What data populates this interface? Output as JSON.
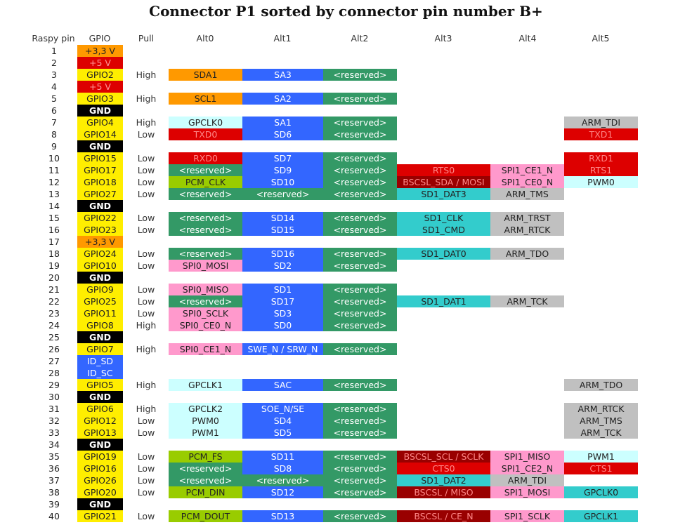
{
  "title": "Connector P1 sorted by connector pin number B+",
  "headers": [
    "Raspy pin",
    "GPIO",
    "Pull",
    "Alt0",
    "Alt1",
    "Alt2",
    "Alt3",
    "Alt4",
    "Alt5"
  ],
  "colors": {
    "orange": "#ff9900",
    "red": "#dd0000",
    "yellow": "#ffee00",
    "black": "#000000",
    "blue": "#3366ff",
    "green": "#339966",
    "lightcyan": "#ccffff",
    "pink": "#ff99cc",
    "lime": "#99cc00",
    "teal": "#33cccc",
    "gray": "#c0c0c0",
    "darkred": "#990000"
  },
  "rows": [
    {
      "pin": "1",
      "gpio": "+3,3 V",
      "gc": "orange",
      "pull": "",
      "alts": []
    },
    {
      "pin": "2",
      "gpio": "+5 V",
      "gc": "red",
      "pull": "",
      "alts": []
    },
    {
      "pin": "3",
      "gpio": "GPIO2",
      "gc": "yellow",
      "pull": "High",
      "alts": [
        [
          "SDA1",
          "orange"
        ],
        [
          "SA3",
          "blue"
        ],
        [
          "<reserved>",
          "green"
        ],
        null,
        null,
        null
      ]
    },
    {
      "pin": "4",
      "gpio": "+5 V",
      "gc": "red",
      "pull": "",
      "alts": []
    },
    {
      "pin": "5",
      "gpio": "GPIO3",
      "gc": "yellow",
      "pull": "High",
      "alts": [
        [
          "SCL1",
          "orange"
        ],
        [
          "SA2",
          "blue"
        ],
        [
          "<reserved>",
          "green"
        ],
        null,
        null,
        null
      ]
    },
    {
      "pin": "6",
      "gpio": "GND",
      "gc": "black",
      "pull": "",
      "alts": []
    },
    {
      "pin": "7",
      "gpio": "GPIO4",
      "gc": "yellow",
      "pull": "High",
      "alts": [
        [
          "GPCLK0",
          "lightcyan"
        ],
        [
          "SA1",
          "blue"
        ],
        [
          "<reserved>",
          "green"
        ],
        null,
        null,
        [
          "ARM_TDI",
          "gray"
        ]
      ]
    },
    {
      "pin": "8",
      "gpio": "GPIO14",
      "gc": "yellow",
      "pull": "Low",
      "alts": [
        [
          "TXD0",
          "red"
        ],
        [
          "SD6",
          "blue"
        ],
        [
          "<reserved>",
          "green"
        ],
        null,
        null,
        [
          "TXD1",
          "red"
        ]
      ]
    },
    {
      "pin": "9",
      "gpio": "GND",
      "gc": "black",
      "pull": "",
      "alts": []
    },
    {
      "pin": "10",
      "gpio": "GPIO15",
      "gc": "yellow",
      "pull": "Low",
      "alts": [
        [
          "RXD0",
          "red"
        ],
        [
          "SD7",
          "blue"
        ],
        [
          "<reserved>",
          "green"
        ],
        null,
        null,
        [
          "RXD1",
          "red"
        ]
      ]
    },
    {
      "pin": "11",
      "gpio": "GPIO17",
      "gc": "yellow",
      "pull": "Low",
      "alts": [
        [
          "<reserved>",
          "green"
        ],
        [
          "SD9",
          "blue"
        ],
        [
          "<reserved>",
          "green"
        ],
        [
          "RTS0",
          "red"
        ],
        [
          "SPI1_CE1_N",
          "pink"
        ],
        [
          "RTS1",
          "red"
        ]
      ]
    },
    {
      "pin": "12",
      "gpio": "GPIO18",
      "gc": "yellow",
      "pull": "Low",
      "alts": [
        [
          "PCM_CLK",
          "lime"
        ],
        [
          "SD10",
          "blue"
        ],
        [
          "<reserved>",
          "green"
        ],
        [
          "BSCSL_SDA / MOSI",
          "darkred"
        ],
        [
          "SPI1_CE0_N",
          "pink"
        ],
        [
          "PWM0",
          "lightcyan"
        ]
      ]
    },
    {
      "pin": "13",
      "gpio": "GPIO27",
      "gc": "yellow",
      "pull": "Low",
      "alts": [
        [
          "<reserved>",
          "green"
        ],
        [
          "<reserved>",
          "green"
        ],
        [
          "<reserved>",
          "green"
        ],
        [
          "SD1_DAT3",
          "teal"
        ],
        [
          "ARM_TMS",
          "gray"
        ],
        null
      ]
    },
    {
      "pin": "14",
      "gpio": "GND",
      "gc": "black",
      "pull": "",
      "alts": []
    },
    {
      "pin": "15",
      "gpio": "GPIO22",
      "gc": "yellow",
      "pull": "Low",
      "alts": [
        [
          "<reserved>",
          "green"
        ],
        [
          "SD14",
          "blue"
        ],
        [
          "<reserved>",
          "green"
        ],
        [
          "SD1_CLK",
          "teal"
        ],
        [
          "ARM_TRST",
          "gray"
        ],
        null
      ]
    },
    {
      "pin": "16",
      "gpio": "GPIO23",
      "gc": "yellow",
      "pull": "Low",
      "alts": [
        [
          "<reserved>",
          "green"
        ],
        [
          "SD15",
          "blue"
        ],
        [
          "<reserved>",
          "green"
        ],
        [
          "SD1_CMD",
          "teal"
        ],
        [
          "ARM_RTCK",
          "gray"
        ],
        null
      ]
    },
    {
      "pin": "17",
      "gpio": "+3,3 V",
      "gc": "orange",
      "pull": "",
      "alts": []
    },
    {
      "pin": "18",
      "gpio": "GPIO24",
      "gc": "yellow",
      "pull": "Low",
      "alts": [
        [
          "<reserved>",
          "green"
        ],
        [
          "SD16",
          "blue"
        ],
        [
          "<reserved>",
          "green"
        ],
        [
          "SD1_DAT0",
          "teal"
        ],
        [
          "ARM_TDO",
          "gray"
        ],
        null
      ]
    },
    {
      "pin": "19",
      "gpio": "GPIO10",
      "gc": "yellow",
      "pull": "Low",
      "alts": [
        [
          "SPI0_MOSI",
          "pink"
        ],
        [
          "SD2",
          "blue"
        ],
        [
          "<reserved>",
          "green"
        ],
        null,
        null,
        null
      ]
    },
    {
      "pin": "20",
      "gpio": "GND",
      "gc": "black",
      "pull": "",
      "alts": []
    },
    {
      "pin": "21",
      "gpio": "GPIO9",
      "gc": "yellow",
      "pull": "Low",
      "alts": [
        [
          "SPI0_MISO",
          "pink"
        ],
        [
          "SD1",
          "blue"
        ],
        [
          "<reserved>",
          "green"
        ],
        null,
        null,
        null
      ]
    },
    {
      "pin": "22",
      "gpio": "GPIO25",
      "gc": "yellow",
      "pull": "Low",
      "alts": [
        [
          "<reserved>",
          "green"
        ],
        [
          "SD17",
          "blue"
        ],
        [
          "<reserved>",
          "green"
        ],
        [
          "SD1_DAT1",
          "teal"
        ],
        [
          "ARM_TCK",
          "gray"
        ],
        null
      ]
    },
    {
      "pin": "23",
      "gpio": "GPIO11",
      "gc": "yellow",
      "pull": "Low",
      "alts": [
        [
          "SPI0_SCLK",
          "pink"
        ],
        [
          "SD3",
          "blue"
        ],
        [
          "<reserved>",
          "green"
        ],
        null,
        null,
        null
      ]
    },
    {
      "pin": "24",
      "gpio": "GPIO8",
      "gc": "yellow",
      "pull": "High",
      "alts": [
        [
          "SPI0_CE0_N",
          "pink"
        ],
        [
          "SD0",
          "blue"
        ],
        [
          "<reserved>",
          "green"
        ],
        null,
        null,
        null
      ]
    },
    {
      "pin": "25",
      "gpio": "GND",
      "gc": "black",
      "pull": "",
      "alts": []
    },
    {
      "pin": "26",
      "gpio": "GPIO7",
      "gc": "yellow",
      "pull": "High",
      "alts": [
        [
          "SPI0_CE1_N",
          "pink"
        ],
        [
          "SWE_N / SRW_N",
          "blue"
        ],
        [
          "<reserved>",
          "green"
        ],
        null,
        null,
        null
      ]
    },
    {
      "pin": "27",
      "gpio": "ID_SD",
      "gc": "blue",
      "pull": "",
      "alts": []
    },
    {
      "pin": "28",
      "gpio": "ID_SC",
      "gc": "blue",
      "pull": "",
      "alts": []
    },
    {
      "pin": "29",
      "gpio": "GPIO5",
      "gc": "yellow",
      "pull": "High",
      "alts": [
        [
          "GPCLK1",
          "lightcyan"
        ],
        [
          "SAC",
          "blue"
        ],
        [
          "<reserved>",
          "green"
        ],
        null,
        null,
        [
          "ARM_TDO",
          "gray"
        ]
      ]
    },
    {
      "pin": "30",
      "gpio": "GND",
      "gc": "black",
      "pull": "",
      "alts": []
    },
    {
      "pin": "31",
      "gpio": "GPIO6",
      "gc": "yellow",
      "pull": "High",
      "alts": [
        [
          "GPCLK2",
          "lightcyan"
        ],
        [
          "SOE_N/SE",
          "blue"
        ],
        [
          "<reserved>",
          "green"
        ],
        null,
        null,
        [
          "ARM_RTCK",
          "gray"
        ]
      ]
    },
    {
      "pin": "32",
      "gpio": "GPIO12",
      "gc": "yellow",
      "pull": "Low",
      "alts": [
        [
          "PWM0",
          "lightcyan"
        ],
        [
          "SD4",
          "blue"
        ],
        [
          "<reserved>",
          "green"
        ],
        null,
        null,
        [
          "ARM_TMS",
          "gray"
        ]
      ]
    },
    {
      "pin": "33",
      "gpio": "GPIO13",
      "gc": "yellow",
      "pull": "Low",
      "alts": [
        [
          "PWM1",
          "lightcyan"
        ],
        [
          "SD5",
          "blue"
        ],
        [
          "<reserved>",
          "green"
        ],
        null,
        null,
        [
          "ARM_TCK",
          "gray"
        ]
      ]
    },
    {
      "pin": "34",
      "gpio": "GND",
      "gc": "black",
      "pull": "",
      "alts": []
    },
    {
      "pin": "35",
      "gpio": "GPIO19",
      "gc": "yellow",
      "pull": "Low",
      "alts": [
        [
          "PCM_FS",
          "lime"
        ],
        [
          "SD11",
          "blue"
        ],
        [
          "<reserved>",
          "green"
        ],
        [
          "BSCSL_SCL / SCLK",
          "darkred"
        ],
        [
          "SPI1_MISO",
          "pink"
        ],
        [
          "PWM1",
          "lightcyan"
        ]
      ]
    },
    {
      "pin": "36",
      "gpio": "GPIO16",
      "gc": "yellow",
      "pull": "Low",
      "alts": [
        [
          "<reserved>",
          "green"
        ],
        [
          "SD8",
          "blue"
        ],
        [
          "<reserved>",
          "green"
        ],
        [
          "CTS0",
          "red"
        ],
        [
          "SPI1_CE2_N",
          "pink"
        ],
        [
          "CTS1",
          "red"
        ]
      ]
    },
    {
      "pin": "37",
      "gpio": "GPIO26",
      "gc": "yellow",
      "pull": "Low",
      "alts": [
        [
          "<reserved>",
          "green"
        ],
        [
          "<reserved>",
          "green"
        ],
        [
          "<reserved>",
          "green"
        ],
        [
          "SD1_DAT2",
          "teal"
        ],
        [
          "ARM_TDI",
          "gray"
        ],
        null
      ]
    },
    {
      "pin": "38",
      "gpio": "GPIO20",
      "gc": "yellow",
      "pull": "Low",
      "alts": [
        [
          "PCM_DIN",
          "lime"
        ],
        [
          "SD12",
          "blue"
        ],
        [
          "<reserved>",
          "green"
        ],
        [
          "BSCSL / MISO",
          "darkred"
        ],
        [
          "SPI1_MOSI",
          "pink"
        ],
        [
          "GPCLK0",
          "teal"
        ]
      ]
    },
    {
      "pin": "39",
      "gpio": "GND",
      "gc": "black",
      "pull": "",
      "alts": []
    },
    {
      "pin": "40",
      "gpio": "GPIO21",
      "gc": "yellow",
      "pull": "Low",
      "alts": [
        [
          "PCM_DOUT",
          "lime"
        ],
        [
          "SD13",
          "blue"
        ],
        [
          "<reserved>",
          "green"
        ],
        [
          "BSCSL / CE_N",
          "darkred"
        ],
        [
          "SPI1_SCLK",
          "pink"
        ],
        [
          "GPCLK1",
          "teal"
        ]
      ]
    }
  ]
}
